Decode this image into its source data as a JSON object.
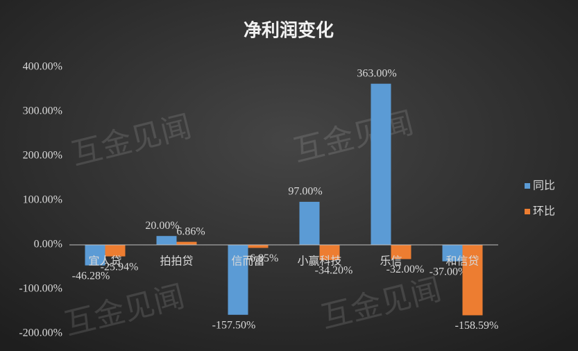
{
  "chart_data": {
    "type": "bar",
    "title": "净利润变化",
    "categories": [
      "宜人贷",
      "拍拍贷",
      "信而富",
      "小赢科技",
      "乐信",
      "和信贷"
    ],
    "series": [
      {
        "name": "同比",
        "color": "#5b9bd5",
        "values": [
          -46.28,
          20.0,
          -157.5,
          97.0,
          363.0,
          -37.0
        ],
        "value_labels": [
          "-46.28%",
          "20.00%",
          "-157.50%",
          "97.00%",
          "363.00%",
          "-37.00%"
        ]
      },
      {
        "name": "环比",
        "color": "#ed7d31",
        "values": [
          -25.94,
          6.86,
          -6.85,
          -34.2,
          -32.0,
          -158.59
        ],
        "value_labels": [
          "-25.94%",
          "6.86%",
          "-6.85%",
          "-34.20%",
          "-32.00%",
          "-158.59%"
        ]
      }
    ],
    "ylim": [
      -200,
      400
    ],
    "yticks": [
      {
        "value": -200,
        "label": "-200.00%"
      },
      {
        "value": -100,
        "label": "-100.00%"
      },
      {
        "value": 0,
        "label": "0.00%"
      },
      {
        "value": 100,
        "label": "100.00%"
      },
      {
        "value": 200,
        "label": "200.00%"
      },
      {
        "value": 300,
        "label": "300.00%"
      },
      {
        "value": 400,
        "label": "400.00%"
      }
    ],
    "grid": false,
    "legend": "right",
    "watermark": "互金见闻"
  }
}
